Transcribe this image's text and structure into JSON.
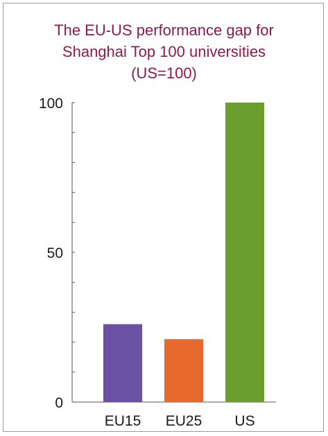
{
  "chart_data": {
    "type": "bar",
    "title_lines": [
      "The EU-US performance gap for",
      "Shanghai Top 100 universities",
      "(US=100)"
    ],
    "categories": [
      "EU15",
      "EU25",
      "US"
    ],
    "values": [
      26,
      21,
      100
    ],
    "colors": [
      "#6a51a3",
      "#e8692e",
      "#6a9e2f"
    ],
    "ylim": [
      0,
      100
    ],
    "yticks": [
      0,
      50,
      100
    ],
    "ytick_labels": [
      "0",
      "50",
      "100"
    ],
    "minor_tick_step": 10,
    "grid": false,
    "legend": "none"
  }
}
